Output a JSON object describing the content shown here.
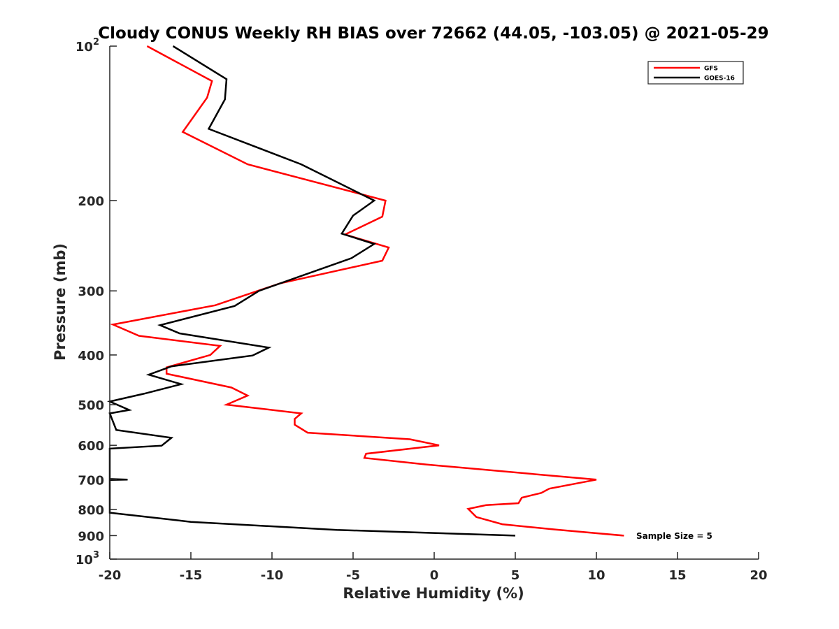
{
  "chart_data": {
    "type": "line",
    "title": "Cloudy CONUS Weekly RH BIAS over 72662 (44.05, -103.05) @ 2021-05-29",
    "xlabel": "Relative Humidity (%)",
    "ylabel": "Pressure (mb)",
    "xlim": [
      -20,
      20
    ],
    "ylim": [
      100,
      1000
    ],
    "y_scale": "log",
    "y_reversed": true,
    "grid": false,
    "legend_position": "top-right",
    "x_ticks": [
      "-20",
      "-15",
      "-10",
      "-5",
      "0",
      "5",
      "10",
      "15",
      "20"
    ],
    "y_ticks": [
      {
        "value": 100,
        "base": "10",
        "exp": "2"
      },
      {
        "value": 200,
        "label": "200"
      },
      {
        "value": 300,
        "label": "300"
      },
      {
        "value": 400,
        "label": "400"
      },
      {
        "value": 500,
        "label": "500"
      },
      {
        "value": 600,
        "label": "600"
      },
      {
        "value": 700,
        "label": "700"
      },
      {
        "value": 800,
        "label": "800"
      },
      {
        "value": 900,
        "label": "900"
      },
      {
        "value": 1000,
        "base": "10",
        "exp": "3"
      }
    ],
    "annotation": "Sample Size = 5",
    "series": [
      {
        "name": "GFS",
        "color": "#ff0000",
        "points": [
          [
            -17.7,
            100
          ],
          [
            -13.7,
            117
          ],
          [
            -14.0,
            126
          ],
          [
            -15.5,
            147
          ],
          [
            -11.5,
            170
          ],
          [
            -3.0,
            200
          ],
          [
            -3.2,
            215
          ],
          [
            -5.5,
            233
          ],
          [
            -2.8,
            247
          ],
          [
            -3.2,
            262
          ],
          [
            -9.5,
            290
          ],
          [
            -13.5,
            320
          ],
          [
            -19.8,
            349
          ],
          [
            -18.2,
            367
          ],
          [
            -13.2,
            384
          ],
          [
            -13.8,
            400
          ],
          [
            -16.5,
            423
          ],
          [
            -16.5,
            435
          ],
          [
            -12.5,
            463
          ],
          [
            -11.5,
            480
          ],
          [
            -12.8,
            500
          ],
          [
            -8.2,
            520
          ],
          [
            -8.6,
            533
          ],
          [
            -8.6,
            547
          ],
          [
            -7.8,
            567
          ],
          [
            -1.5,
            584
          ],
          [
            0.3,
            600
          ],
          [
            -4.2,
            623
          ],
          [
            -4.3,
            635
          ],
          [
            -0.5,
            654
          ],
          [
            10.0,
            700
          ],
          [
            7.1,
            729
          ],
          [
            6.6,
            743
          ],
          [
            5.4,
            759
          ],
          [
            5.2,
            778
          ],
          [
            3.2,
            785
          ],
          [
            2.1,
            798
          ],
          [
            2.6,
            828
          ],
          [
            4.2,
            855
          ],
          [
            7.5,
            876
          ],
          [
            11.7,
            900
          ]
        ]
      },
      {
        "name": "GOES-16",
        "color": "#000000",
        "points": [
          [
            -16.1,
            100
          ],
          [
            -12.8,
            116
          ],
          [
            -12.9,
            127
          ],
          [
            -13.9,
            145
          ],
          [
            -8.2,
            170
          ],
          [
            -3.7,
            200
          ],
          [
            -5.0,
            214
          ],
          [
            -5.7,
            232
          ],
          [
            -3.7,
            243
          ],
          [
            -5.1,
            259
          ],
          [
            -10.8,
            300
          ],
          [
            -12.3,
            321
          ],
          [
            -16.9,
            350
          ],
          [
            -15.7,
            363
          ],
          [
            -10.2,
            387
          ],
          [
            -11.2,
            401
          ],
          [
            -16.2,
            421
          ],
          [
            -17.6,
            437
          ],
          [
            -15.6,
            456
          ],
          [
            -17.9,
            476
          ],
          [
            -20.0,
            493
          ],
          [
            -18.8,
            512
          ],
          [
            -20.0,
            520
          ],
          [
            -19.6,
            560
          ],
          [
            -16.2,
            580
          ],
          [
            -16.8,
            601
          ],
          [
            -20.0,
            609
          ],
          [
            -20.0,
            698
          ],
          [
            -18.9,
            700
          ],
          [
            -20.0,
            701
          ],
          [
            -20.0,
            812
          ],
          [
            -15.0,
            846
          ],
          [
            -6.0,
            877
          ],
          [
            5.0,
            900
          ]
        ]
      }
    ]
  }
}
